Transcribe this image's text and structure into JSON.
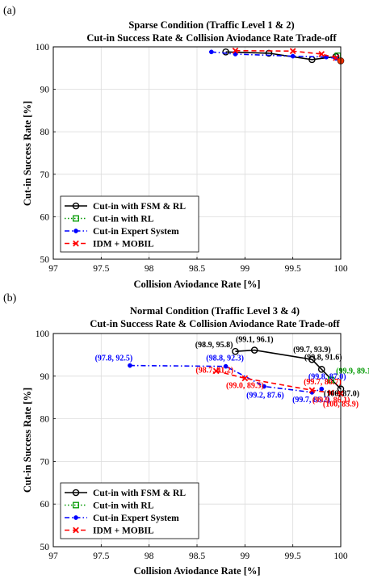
{
  "chart_data": [
    {
      "type": "line",
      "panel_label": "(a)",
      "title": "Sparse Condition (Traffic Level 1 & 2)",
      "subtitle": "Cut-in Success Rate & Collision Aviodance Rate Trade-off",
      "xlabel": "Collision Aviodance Rate [%]",
      "ylabel": "Cut-in Success Rate [%]",
      "xlim": [
        97,
        100
      ],
      "ylim": [
        50,
        100
      ],
      "xticks": [
        "97",
        "97.5",
        "98",
        "98.5",
        "99",
        "99.5",
        "100"
      ],
      "yticks": [
        "50",
        "60",
        "70",
        "80",
        "90",
        "100"
      ],
      "grid": true,
      "legend_position": "bottom-left",
      "series": [
        {
          "name": "Cut-in with FSM & RL",
          "color": "#000000",
          "marker": "circle",
          "dash": "solid",
          "points": [
            [
              98.8,
              98.8
            ],
            [
              99.25,
              98.5
            ],
            [
              99.7,
              97.0
            ],
            [
              99.95,
              97.7
            ],
            [
              100.0,
              96.7
            ]
          ],
          "labels": []
        },
        {
          "name": "Cut-in with RL",
          "color": "#009900",
          "marker": "square",
          "dash": "dotted",
          "points": [
            [
              99.97,
              97.9
            ]
          ],
          "labels": []
        },
        {
          "name": "Cut-in Expert System",
          "color": "#0000ff",
          "marker": "dot",
          "dash": "dashdot",
          "points": [
            [
              98.65,
              98.8
            ],
            [
              98.9,
              98.3
            ],
            [
              99.5,
              97.8
            ],
            [
              99.85,
              97.6
            ],
            [
              99.95,
              97.3
            ]
          ],
          "labels": []
        },
        {
          "name": "IDM + MOBIL",
          "color": "#ff0000",
          "marker": "x",
          "dash": "dashed",
          "points": [
            [
              98.9,
              99.1
            ],
            [
              99.5,
              99.0
            ],
            [
              99.8,
              98.3
            ],
            [
              99.95,
              97.4
            ]
          ],
          "labels": []
        }
      ],
      "highlight_point": {
        "x": 100.0,
        "y": 96.7,
        "color": "#ff3300"
      }
    },
    {
      "type": "line",
      "panel_label": "(b)",
      "title": "Normal Condition (Traffic Level 3 & 4)",
      "subtitle": "Cut-in Success Rate & Collision Aviodance Rate Trade-off",
      "xlabel": "Collision Aviodance Rate [%]",
      "ylabel": "Cut-in Success Rate [%]",
      "xlim": [
        97,
        100
      ],
      "ylim": [
        50,
        100
      ],
      "xticks": [
        "97",
        "97.5",
        "98",
        "98.5",
        "99",
        "99.5",
        "100"
      ],
      "yticks": [
        "50",
        "60",
        "70",
        "80",
        "90",
        "100"
      ],
      "grid": true,
      "legend_position": "bottom-left",
      "series": [
        {
          "name": "Cut-in with FSM & RL",
          "color": "#000000",
          "marker": "circle",
          "dash": "solid",
          "points": [
            [
              98.9,
              95.8
            ],
            [
              99.1,
              96.1
            ],
            [
              99.7,
              93.9
            ],
            [
              99.8,
              91.6
            ],
            [
              100.0,
              87.0
            ]
          ],
          "labels": [
            "(98.9, 95.8)",
            "(99.1, 96.1)",
            "(99.7, 93.9)",
            "(99.8, 91.6)",
            "(100, 87.0)"
          ]
        },
        {
          "name": "Cut-in with RL",
          "color": "#009900",
          "marker": "square",
          "dash": "dotted",
          "points": [
            [
              99.9,
              89.1
            ]
          ],
          "labels": [
            "(99.9, 89.1)"
          ]
        },
        {
          "name": "Cut-in Expert System",
          "color": "#0000ff",
          "marker": "dot",
          "dash": "dashdot",
          "points": [
            [
              97.8,
              92.5
            ],
            [
              98.8,
              92.3
            ],
            [
              99.2,
              87.6
            ],
            [
              99.7,
              86.2
            ],
            [
              99.8,
              87.0
            ]
          ],
          "labels": [
            "(97.8, 92.5)",
            "(98.8, 92.3)",
            "(99.2, 87.6)",
            "(99.7, 86.2)",
            "(99.8, 87.0)"
          ]
        },
        {
          "name": "IDM + MOBIL",
          "color": "#ff0000",
          "marker": "x",
          "dash": "dashed",
          "points": [
            [
              98.7,
              91.2
            ],
            [
              99.0,
              89.5
            ],
            [
              99.7,
              86.7
            ],
            [
              99.9,
              86.1
            ],
            [
              100.0,
              85.9
            ]
          ],
          "labels": [
            "(98.7, 91.2)",
            "(99.0, 89.5)",
            "(99.7, 86.7)",
            "(99.9, 86.1)",
            "(100, 85.9)"
          ]
        }
      ]
    }
  ]
}
